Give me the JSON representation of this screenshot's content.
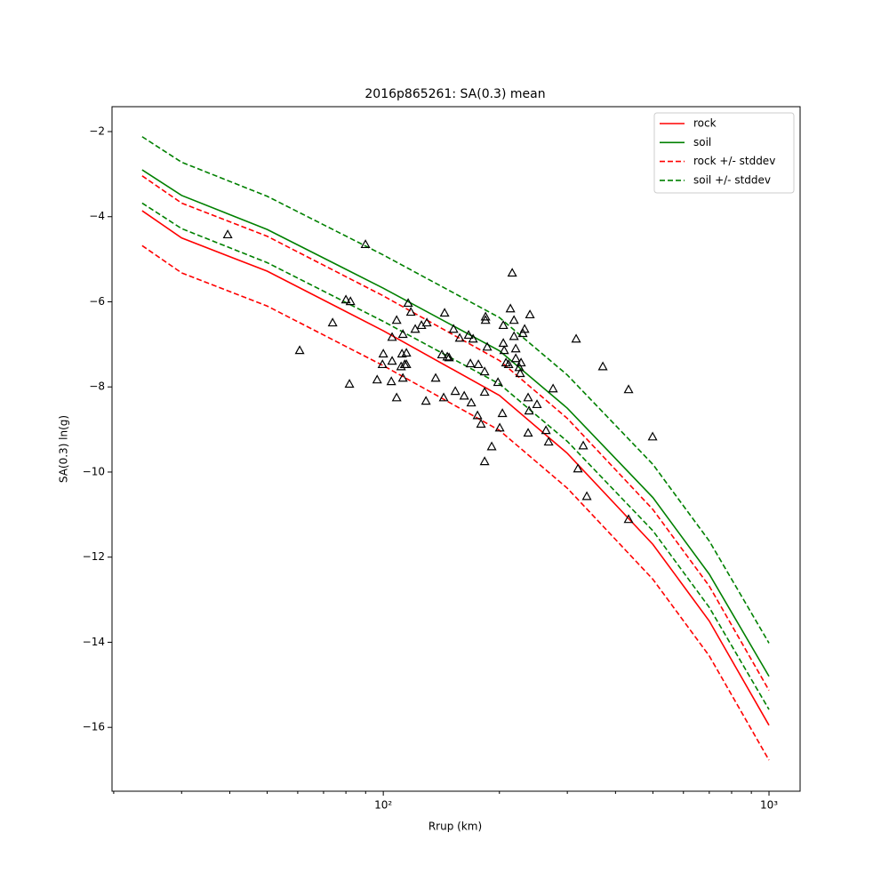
{
  "chart_data": {
    "type": "line",
    "title": "2016p865261: SA(0.3) mean",
    "xlabel": "Rrup (km)",
    "ylabel": "SA(0.3) ln(g)",
    "xscale": "log",
    "xlim": [
      19.8,
      1204
    ],
    "ylim": [
      -17.5,
      -1.415
    ],
    "xticks": [
      {
        "value": 100,
        "label": "10²"
      },
      {
        "value": 1000,
        "label": "10³"
      }
    ],
    "xminorticks": [
      20,
      30,
      40,
      50,
      60,
      70,
      80,
      90,
      200,
      300,
      400,
      500,
      600,
      700,
      800,
      900
    ],
    "yticks": [
      {
        "value": -16,
        "label": "−16"
      },
      {
        "value": -14,
        "label": "−14"
      },
      {
        "value": -12,
        "label": "−12"
      },
      {
        "value": -10,
        "label": "−10"
      },
      {
        "value": -8,
        "label": "−8"
      },
      {
        "value": -6,
        "label": "−6"
      },
      {
        "value": -4,
        "label": "−4"
      },
      {
        "value": -2,
        "label": "−2"
      }
    ],
    "legend": "upper right",
    "x": [
      23.7,
      30,
      50,
      100,
      200,
      300,
      500,
      700,
      1000
    ],
    "series": [
      {
        "name": "rock",
        "color": "#ff0000",
        "dash": false,
        "values": [
          -3.86,
          -4.5,
          -5.28,
          -6.68,
          -8.2,
          -9.56,
          -11.7,
          -13.5,
          -15.95
        ]
      },
      {
        "name": "soil",
        "color": "#008000",
        "dash": false,
        "values": [
          -2.9,
          -3.5,
          -4.3,
          -5.68,
          -7.15,
          -8.5,
          -10.6,
          -12.4,
          -14.8
        ]
      },
      {
        "name": "rock +/- stddev",
        "color": "#ff0000",
        "dash": true,
        "values": [
          -3.04,
          -3.68,
          -4.46,
          -5.86,
          -7.38,
          -8.74,
          -10.88,
          -12.68,
          -15.13
        ],
        "lower": [
          -4.68,
          -5.32,
          -6.1,
          -7.5,
          -9.02,
          -10.38,
          -12.52,
          -14.32,
          -16.77
        ]
      },
      {
        "name": "soil +/- stddev",
        "color": "#008000",
        "dash": true,
        "values": [
          -2.12,
          -2.72,
          -3.52,
          -4.9,
          -6.37,
          -7.72,
          -9.82,
          -11.62,
          -14.02
        ],
        "lower": [
          -3.68,
          -4.28,
          -5.08,
          -6.46,
          -7.93,
          -9.28,
          -11.38,
          -13.18,
          -15.58
        ]
      }
    ],
    "scatter": {
      "marker": "triangle",
      "color": "#000000",
      "x": [
        39.5,
        89.9,
        60.7,
        73.9,
        80.0,
        82.2,
        81.7,
        96.4,
        100,
        99.5,
        105.4,
        104.9,
        108.3,
        105.4,
        108.3,
        111.8,
        111.2,
        113.6,
        114.8,
        112.4,
        116.0,
        117.9,
        114.8,
        112.4,
        121.0,
        125.6,
        129.7,
        129.0,
        136.7,
        141.9,
        144.2,
        143.4,
        146.5,
        148.1,
        152.1,
        153.7,
        157.8,
        162.1,
        166.4,
        168.2,
        169.1,
        170.9,
        175.5,
        176.4,
        179.2,
        184.1,
        184.1,
        183.1,
        183.1,
        183.1,
        186.0,
        191.0,
        198.3,
        200.4,
        203.6,
        204.7,
        204.7,
        205.8,
        208.0,
        211.3,
        213.6,
        215.9,
        218.2,
        218.2,
        220.5,
        220.5,
        225.2,
        226.4,
        227.6,
        230.0,
        232.5,
        237.4,
        238.7,
        237.4,
        240.0,
        250.3,
        264.1,
        268.3,
        275.5,
        316.2,
        319.6,
        329.9,
        337.0,
        370.8,
        432.4,
        432.4,
        499.1
      ],
      "values": [
        -4.42,
        -4.65,
        -7.14,
        -6.49,
        -5.95,
        -5.99,
        -7.93,
        -7.83,
        -7.22,
        -7.47,
        -7.39,
        -7.87,
        -6.43,
        -6.83,
        -8.25,
        -7.22,
        -7.52,
        -7.47,
        -7.47,
        -6.76,
        -6.03,
        -6.24,
        -7.2,
        -7.79,
        -6.64,
        -6.55,
        -6.49,
        -8.33,
        -7.79,
        -7.24,
        -6.26,
        -8.25,
        -7.29,
        -7.31,
        -6.64,
        -8.1,
        -6.85,
        -8.21,
        -6.78,
        -7.45,
        -8.37,
        -6.87,
        -8.67,
        -7.47,
        -8.87,
        -6.35,
        -6.43,
        -7.64,
        -8.12,
        -9.75,
        -7.06,
        -9.4,
        -7.89,
        -8.96,
        -8.62,
        -6.55,
        -6.97,
        -7.14,
        -7.43,
        -7.47,
        -6.16,
        -5.32,
        -6.81,
        -6.43,
        -7.33,
        -7.1,
        -7.54,
        -7.68,
        -7.43,
        -6.74,
        -6.64,
        -8.25,
        -8.56,
        -9.08,
        -6.3,
        -8.41,
        -9.02,
        -9.29,
        -8.04,
        -6.87,
        -9.92,
        -9.38,
        -10.57,
        -7.52,
        -8.06,
        -11.11,
        -9.17
      ]
    }
  }
}
